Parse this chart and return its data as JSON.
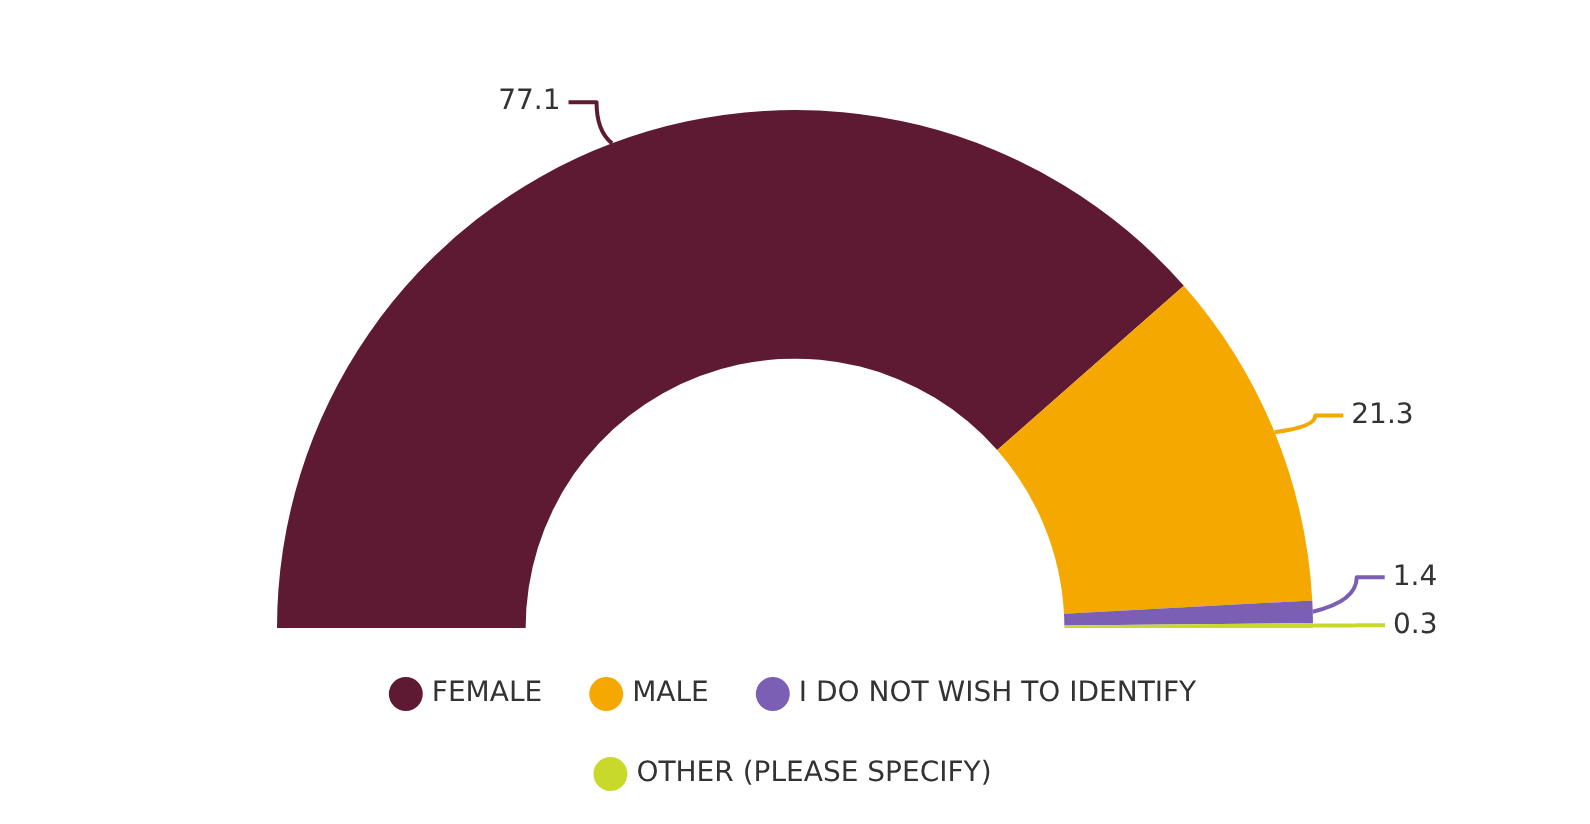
{
  "chart_data": {
    "type": "donut",
    "categories": [
      "FEMALE",
      "MALE",
      "I DO NOT WISH TO IDENTIFY",
      "OTHER (PLEASE SPECIFY)"
    ],
    "values": [
      77.1,
      21.3,
      1.4,
      0.3
    ],
    "colors": [
      "#5e1a33",
      "#f5a800",
      "#7b5fb5",
      "#c8d92b"
    ],
    "data_labels": true,
    "legend": "bottom"
  }
}
